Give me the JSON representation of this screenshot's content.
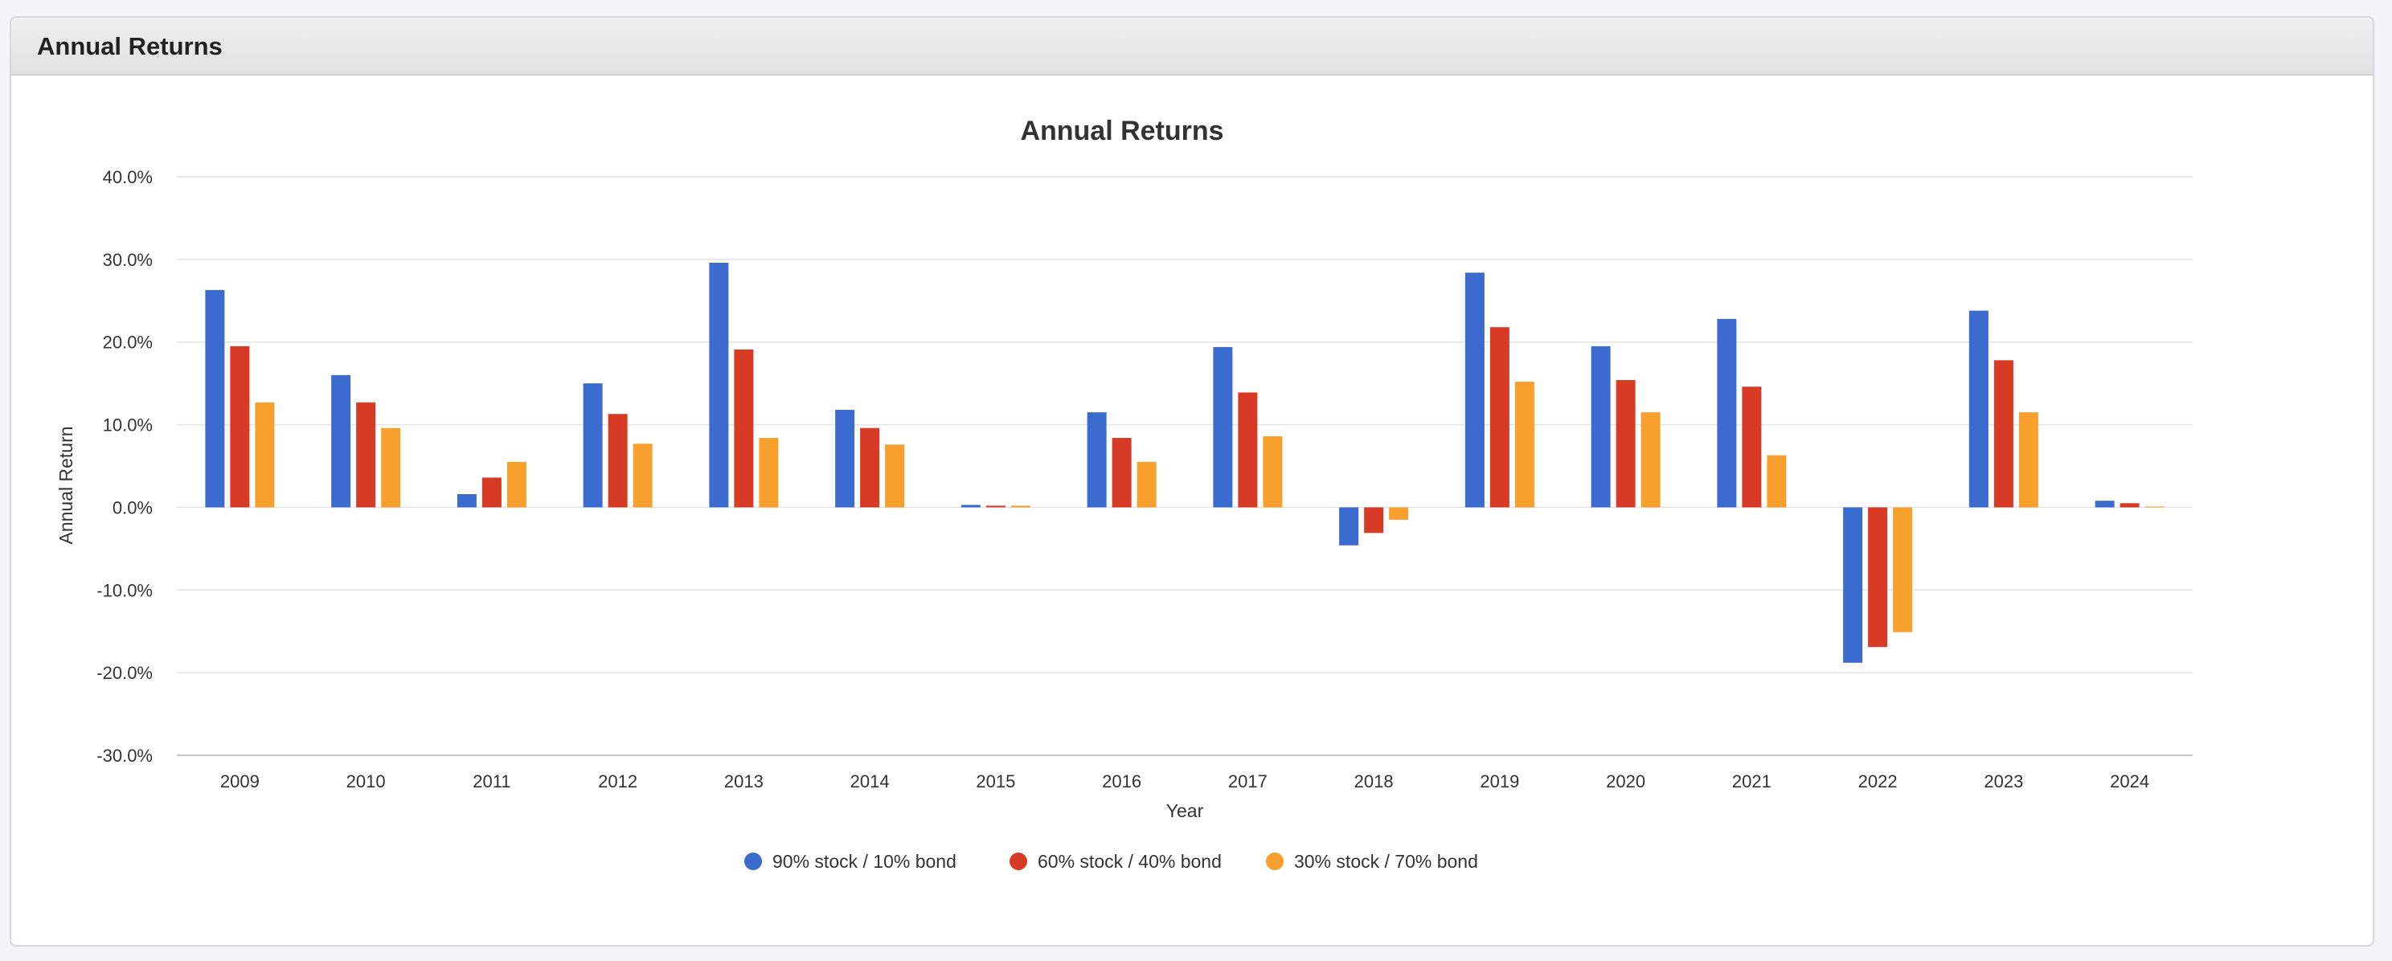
{
  "panel": {
    "title": "Annual Returns"
  },
  "chart_data": {
    "type": "bar",
    "title": "Annual Returns",
    "xlabel": "Year",
    "ylabel": "Annual Return",
    "categories": [
      "2009",
      "2010",
      "2011",
      "2012",
      "2013",
      "2014",
      "2015",
      "2016",
      "2017",
      "2018",
      "2019",
      "2020",
      "2021",
      "2022",
      "2023",
      "2024"
    ],
    "ylim": [
      -30,
      40
    ],
    "yticks": [
      40,
      30,
      20,
      10,
      0,
      -10,
      -20,
      -30
    ],
    "ytick_labels": [
      "40.0%",
      "30.0%",
      "20.0%",
      "10.0%",
      "0.0%",
      "-10.0%",
      "-20.0%",
      "-30.0%"
    ],
    "grid": true,
    "legend_position": "bottom",
    "series": [
      {
        "name": "90% stock / 10% bond",
        "color": "#3b6bcf",
        "values": [
          26.3,
          16.0,
          1.6,
          15.0,
          29.6,
          11.8,
          0.3,
          11.5,
          19.4,
          -4.6,
          28.4,
          19.5,
          22.8,
          -18.8,
          23.8,
          0.8
        ]
      },
      {
        "name": "60% stock / 40% bond",
        "color": "#d83b25",
        "values": [
          19.5,
          12.7,
          3.6,
          11.3,
          19.1,
          9.6,
          0.2,
          8.4,
          13.9,
          -3.1,
          21.8,
          15.4,
          14.6,
          -16.9,
          17.8,
          0.5
        ]
      },
      {
        "name": "30% stock / 70% bond",
        "color": "#f8a02e",
        "values": [
          12.7,
          9.6,
          5.5,
          7.7,
          8.4,
          7.6,
          0.2,
          5.5,
          8.6,
          -1.5,
          15.2,
          11.5,
          6.3,
          -15.1,
          11.5,
          0.1
        ]
      }
    ]
  }
}
